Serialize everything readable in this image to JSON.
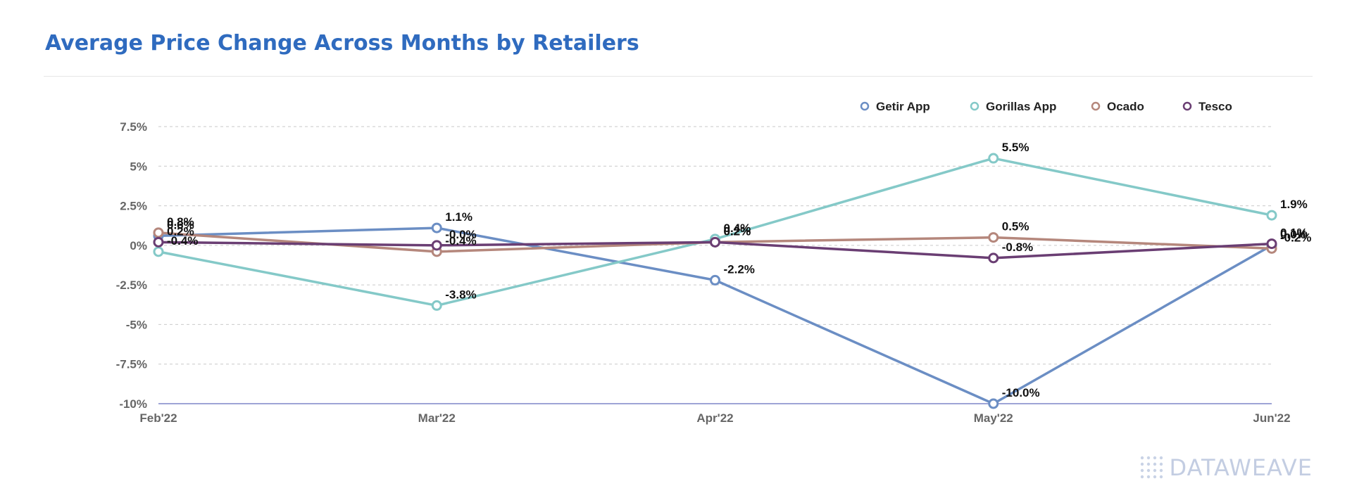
{
  "title": "Average Price Change Across Months by Retailers",
  "logo_text": "DATAWEAVE",
  "chart_data": {
    "type": "line",
    "categories": [
      "Feb'22",
      "Mar'22",
      "Apr'22",
      "May'22",
      "Jun'22"
    ],
    "ylim": [
      -10,
      7.5
    ],
    "y_ticks": [
      7.5,
      5,
      2.5,
      0,
      -2.5,
      -5,
      -7.5,
      -10
    ],
    "y_tick_labels": [
      "7.5%",
      "5%",
      "2.5%",
      "0%",
      "-2.5%",
      "-5%",
      "-7.5%",
      "-10%"
    ],
    "grid": true,
    "legend_position": "top-right",
    "series": [
      {
        "name": "Getir App",
        "color": "#6b8ec4",
        "values": [
          0.6,
          1.1,
          -2.2,
          -10.0,
          0.0
        ],
        "labels": [
          "0.6%",
          "1.1%",
          "-2.2%",
          "-10.0%",
          "0.0%"
        ]
      },
      {
        "name": "Gorillas App",
        "color": "#84c9c8",
        "values": [
          -0.4,
          -3.8,
          0.4,
          5.5,
          1.9
        ],
        "labels": [
          "-0.4%",
          "-3.8%",
          "0.4%",
          "5.5%",
          "1.9%"
        ]
      },
      {
        "name": "Ocado",
        "color": "#b5877c",
        "values": [
          0.8,
          -0.4,
          0.2,
          0.5,
          -0.2
        ],
        "labels": [
          "0.8%",
          "-0.4%",
          "0.2%",
          "0.5%",
          "-0.2%"
        ]
      },
      {
        "name": "Tesco",
        "color": "#6a3e73",
        "values": [
          0.2,
          -0.0,
          0.2,
          -0.8,
          0.1
        ],
        "labels": [
          "0.2%",
          "-0.0%",
          "0.2%",
          "-0.8%",
          "0.1%"
        ]
      }
    ]
  }
}
